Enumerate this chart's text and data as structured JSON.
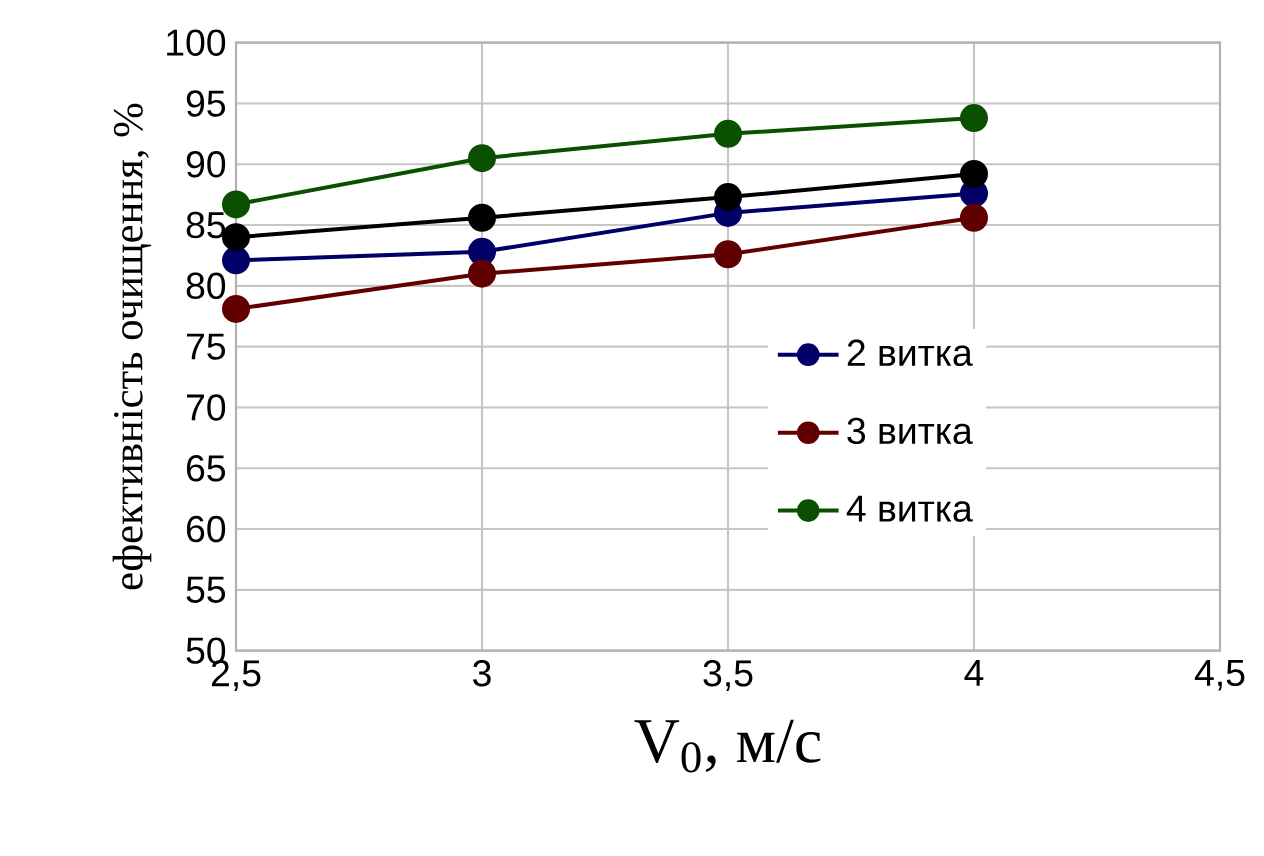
{
  "chart_data": {
    "type": "line",
    "xlabel": "V$_{0}$, м/с",
    "ylabel": "ефективність очищення, %",
    "x": [
      2.5,
      3,
      3.5,
      4
    ],
    "series": [
      {
        "name": "2 витка",
        "color": "#000066",
        "values": [
          82.1,
          82.8,
          86.0,
          87.6
        ]
      },
      {
        "name": "3 витка",
        "color": "#600000",
        "values": [
          78.1,
          81.0,
          82.6,
          85.6
        ]
      },
      {
        "name": "4 витка",
        "color": "#0a5000",
        "values": [
          86.7,
          90.5,
          92.5,
          93.8
        ]
      },
      {
        "color": "#000000",
        "values": [
          84.0,
          85.6,
          87.3,
          89.2
        ]
      }
    ],
    "xlim": [
      2.5,
      4.5
    ],
    "xticks": [
      {
        "value": 2.5,
        "label": "2,5"
      },
      3,
      {
        "value": 3.5,
        "label": "3,5"
      },
      4,
      {
        "value": 4.5,
        "label": "4,5"
      }
    ],
    "ylim": [
      50,
      100
    ],
    "yticks": [
      50,
      55,
      60,
      65,
      70,
      75,
      80,
      85,
      90,
      95,
      100
    ],
    "grid": true,
    "legend": "right",
    "marker": "circle",
    "line_style": "solid"
  }
}
